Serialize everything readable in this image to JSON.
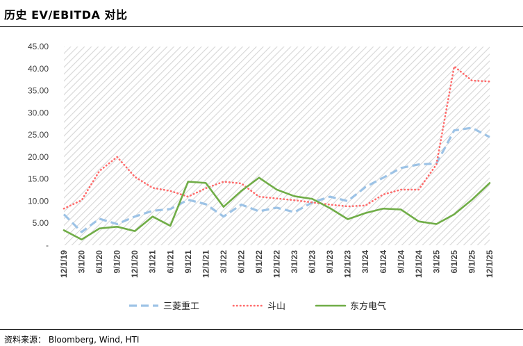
{
  "header": {
    "title": "历史 EV/EBITDA 对比"
  },
  "footer": {
    "source": "资料来源：  Bloomberg, Wind, HTI"
  },
  "chart_data": {
    "type": "line",
    "title": "历史 EV/EBITDA 对比",
    "xlabel": "",
    "ylabel": "",
    "ylim": [
      0,
      45
    ],
    "y_tick_labels": [
      "-",
      "5.00",
      "10.00",
      "15.00",
      "20.00",
      "25.00",
      "30.00",
      "35.00",
      "40.00",
      "45.00"
    ],
    "y_tick_values": [
      0,
      5,
      10,
      15,
      20,
      25,
      30,
      35,
      40,
      45
    ],
    "grid": false,
    "background": "diagonal-hatch",
    "legend": "bottom",
    "categories": [
      "12/1/19",
      "3/1/20",
      "6/1/20",
      "9/1/20",
      "12/1/20",
      "3/1/21",
      "6/1/21",
      "9/1/21",
      "12/1/21",
      "3/1/22",
      "6/1/22",
      "9/1/22",
      "12/1/22",
      "3/1/23",
      "6/1/23",
      "9/1/23",
      "12/1/23",
      "3/1/24",
      "6/1/24",
      "9/1/24",
      "12/1/24",
      "3/1/25",
      "6/1/25",
      "9/1/25",
      "12/1/25"
    ],
    "series": [
      {
        "name": "三菱重工",
        "color": "#9dc3e6",
        "style": "dashed",
        "values": [
          7.0,
          3.0,
          6.0,
          4.8,
          6.5,
          7.8,
          8.2,
          10.3,
          9.3,
          6.5,
          9.2,
          7.7,
          8.5,
          7.5,
          9.7,
          11.0,
          10.0,
          13.2,
          15.3,
          17.5,
          18.3,
          18.5,
          26.0,
          26.6,
          24.5
        ]
      },
      {
        "name": "斗山",
        "color": "#ff6b6b",
        "style": "dotted",
        "values": [
          8.3,
          10.2,
          16.8,
          20.0,
          15.5,
          13.0,
          12.3,
          11.0,
          12.9,
          14.4,
          14.0,
          11.0,
          10.6,
          10.2,
          9.7,
          9.2,
          8.8,
          9.0,
          11.5,
          12.6,
          12.6,
          18.3,
          40.5,
          37.3,
          37.1
        ]
      },
      {
        "name": "东方电气",
        "color": "#70ad47",
        "style": "solid",
        "values": [
          3.4,
          1.3,
          3.8,
          4.2,
          3.2,
          6.5,
          4.4,
          14.4,
          14.1,
          8.7,
          12.3,
          15.3,
          12.6,
          11.1,
          10.5,
          8.4,
          5.9,
          7.3,
          8.3,
          8.1,
          5.4,
          4.8,
          7.0,
          10.3,
          14.1
        ]
      }
    ]
  }
}
